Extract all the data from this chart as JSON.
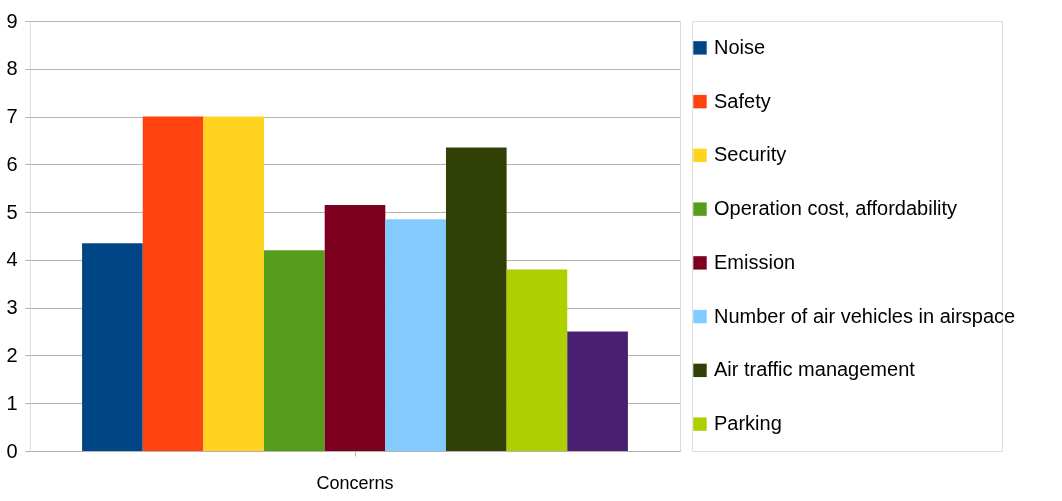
{
  "chart_data": {
    "type": "bar",
    "categories": [
      "Concerns"
    ],
    "ylim": [
      0,
      9
    ],
    "yticks": [
      0,
      1,
      2,
      3,
      4,
      5,
      6,
      7,
      8,
      9
    ],
    "grid": "y",
    "legend": "right",
    "series": [
      {
        "name": "Noise",
        "color": "#004586",
        "values": [
          4.35
        ]
      },
      {
        "name": "Safety",
        "color": "#ff420e",
        "values": [
          7.0
        ]
      },
      {
        "name": "Security",
        "color": "#ffd320",
        "values": [
          7.0
        ]
      },
      {
        "name": "Operation cost, affordability",
        "color": "#579d1c",
        "values": [
          4.2
        ]
      },
      {
        "name": "Emission",
        "color": "#7e0021",
        "values": [
          5.15
        ]
      },
      {
        "name": "Number of air vehicles in airspace",
        "color": "#83caff",
        "values": [
          4.85
        ]
      },
      {
        "name": "Air traffic management",
        "color": "#314004",
        "values": [
          6.35
        ]
      },
      {
        "name": "Parking",
        "color": "#aecf00",
        "values": [
          3.8
        ]
      },
      {
        "color": "#4b1f6f",
        "values": [
          2.5
        ]
      }
    ]
  }
}
